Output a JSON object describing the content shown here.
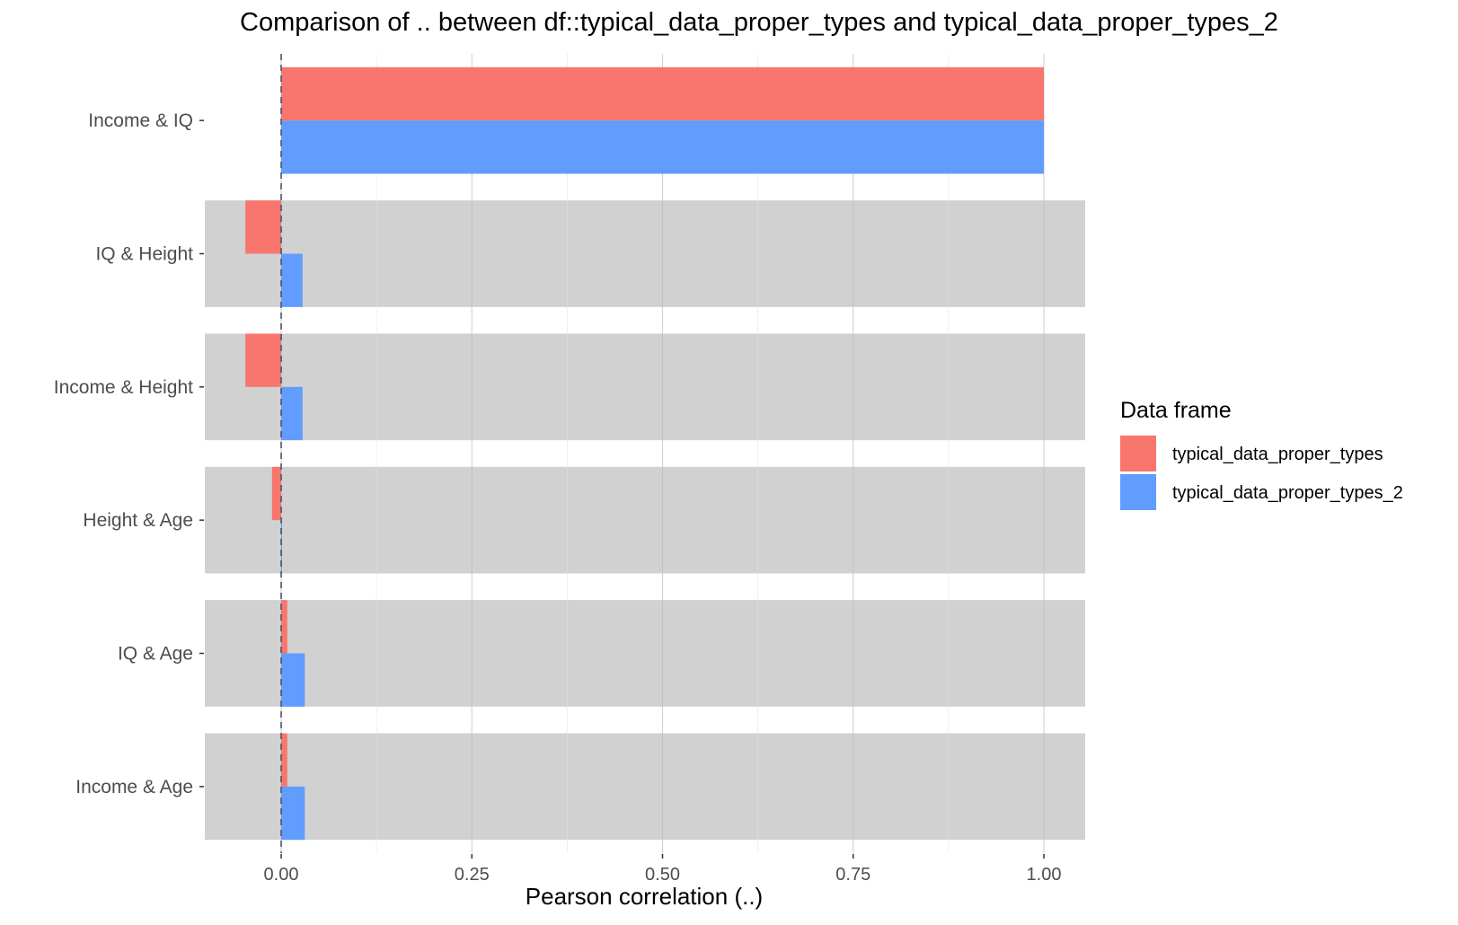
{
  "chart_data": {
    "type": "bar",
    "orientation": "horizontal",
    "title": "Comparison of .. between df::typical_data_proper_types and typical_data_proper_types_2",
    "xlabel": "Pearson correlation (..)",
    "ylabel": "",
    "categories": [
      "Income & IQ",
      "IQ & Height",
      "Income & Height",
      "Height & Age",
      "IQ & Age",
      "Income & Age"
    ],
    "highlighted": [
      false,
      true,
      true,
      true,
      true,
      true
    ],
    "series": [
      {
        "name": "typical_data_proper_types",
        "color": "#F8766D",
        "values": [
          1.0,
          -0.047,
          -0.047,
          -0.012,
          0.008,
          0.008
        ]
      },
      {
        "name": "typical_data_proper_types_2",
        "color": "#619CFF",
        "values": [
          1.0,
          0.028,
          0.028,
          0.001,
          0.031,
          0.031
        ]
      }
    ],
    "xlim": [
      -0.1,
      1.05
    ],
    "xticks": [
      "0.00",
      "0.25",
      "0.50",
      "0.75",
      "1.00"
    ],
    "xtick_values": [
      0,
      0.25,
      0.5,
      0.75,
      1.0
    ],
    "reference_line": 0,
    "grid": true,
    "highlight_color": "#d1d1d1",
    "legend": {
      "title": "Data frame",
      "position": "right"
    }
  }
}
